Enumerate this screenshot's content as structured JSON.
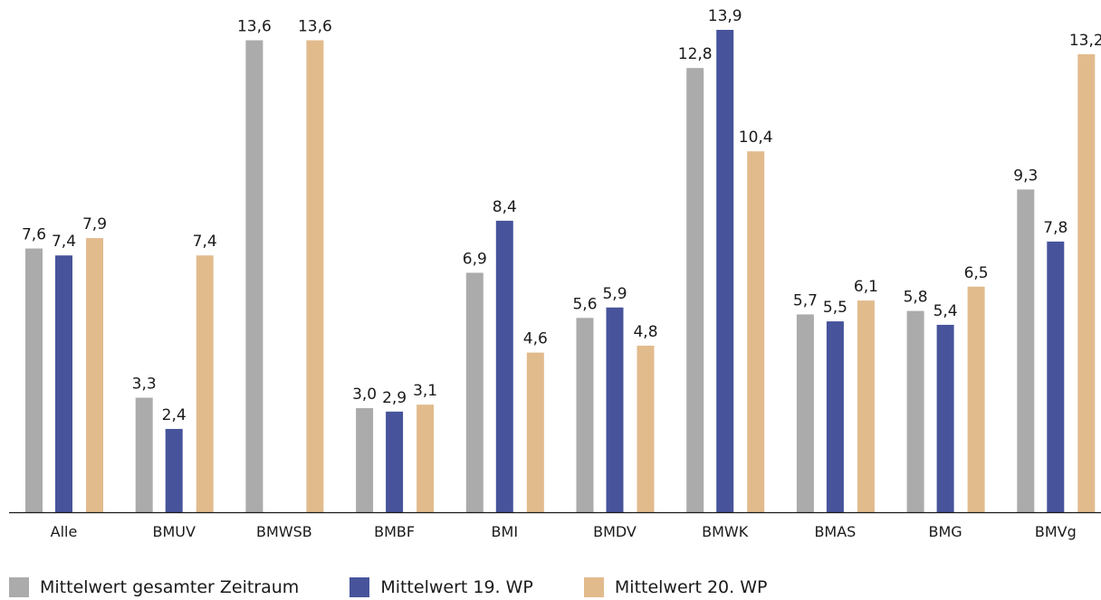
{
  "chart_data": {
    "type": "bar",
    "categories": [
      "Alle",
      "BMUV",
      "BMWSB",
      "BMBF",
      "BMI",
      "BMDV",
      "BMWK",
      "BMAS",
      "BMG",
      "BMVg"
    ],
    "series": [
      {
        "name": "Mittelwert gesamter Zeitraum",
        "color": "#ababab",
        "values": [
          7.6,
          3.3,
          13.6,
          3.0,
          6.9,
          5.6,
          12.8,
          5.7,
          5.8,
          9.3
        ],
        "labels": [
          "7,6",
          "3,3",
          "13,6",
          "3,0",
          "6,9",
          "5,6",
          "12,8",
          "5,7",
          "5,8",
          "9,3"
        ]
      },
      {
        "name": "Mittelwert 19. WP",
        "color": "#47549b",
        "values": [
          7.4,
          2.4,
          null,
          2.9,
          8.4,
          5.9,
          13.9,
          5.5,
          5.4,
          7.8
        ],
        "labels": [
          "7,4",
          "2,4",
          "",
          "2,9",
          "8,4",
          "5,9",
          "13,9",
          "5,5",
          "5,4",
          "7,8"
        ]
      },
      {
        "name": "Mittelwert 20. WP",
        "color": "#e2bb8d",
        "values": [
          7.9,
          7.4,
          13.6,
          3.1,
          4.6,
          4.8,
          10.4,
          6.1,
          6.5,
          13.2
        ],
        "labels": [
          "7,9",
          "7,4",
          "13,6",
          "3,1",
          "4,6",
          "4,8",
          "10,4",
          "6,1",
          "6,5",
          "13,2"
        ]
      }
    ],
    "ylim": [
      0,
      14.5
    ],
    "grid": false,
    "legend_position": "bottom-left"
  }
}
